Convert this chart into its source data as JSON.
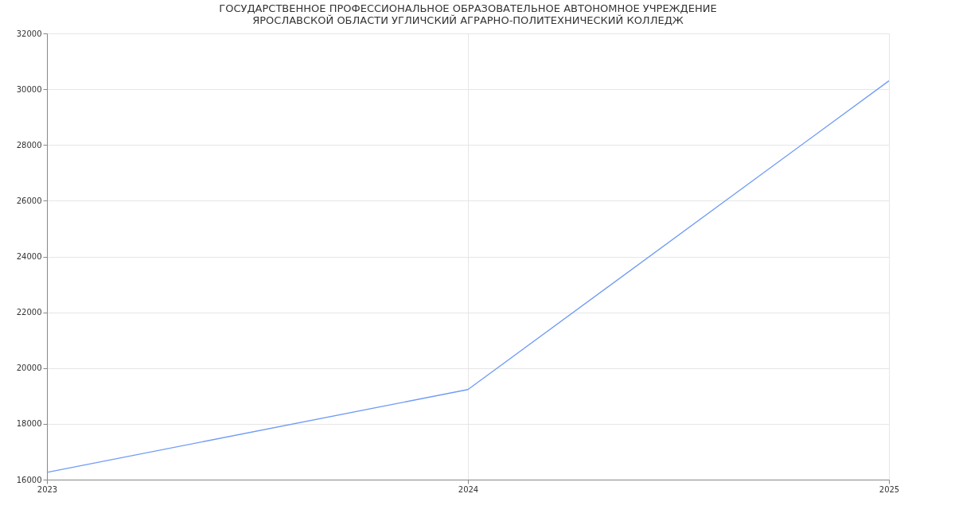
{
  "chart_data": {
    "type": "line",
    "title": "ГОСУДАРСТВЕННОЕ ПРОФЕССИОНАЛЬНОЕ ОБРАЗОВАТЕЛЬНОЕ АВТОНОМНОЕ УЧРЕЖДЕНИЕ ЯРОСЛАВСКОЙ ОБЛАСТИ УГЛИЧСКИЙ АГРАРНО-ПОЛИТЕХНИЧЕСКИЙ КОЛЛЕДЖ",
    "x": [
      2023,
      2024,
      2025
    ],
    "series": [
      {
        "color": "#6f9cf5",
        "values": [
          16260,
          19230,
          30300
        ]
      }
    ],
    "xlim": [
      2023,
      2025
    ],
    "xticks": [
      2023,
      2024,
      2025
    ],
    "ylim": [
      16000,
      32000
    ],
    "yticks": [
      16000,
      18000,
      20000,
      22000,
      24000,
      26000,
      28000,
      30000,
      32000
    ],
    "grid": true,
    "marker": "none",
    "line_style": "solid"
  }
}
